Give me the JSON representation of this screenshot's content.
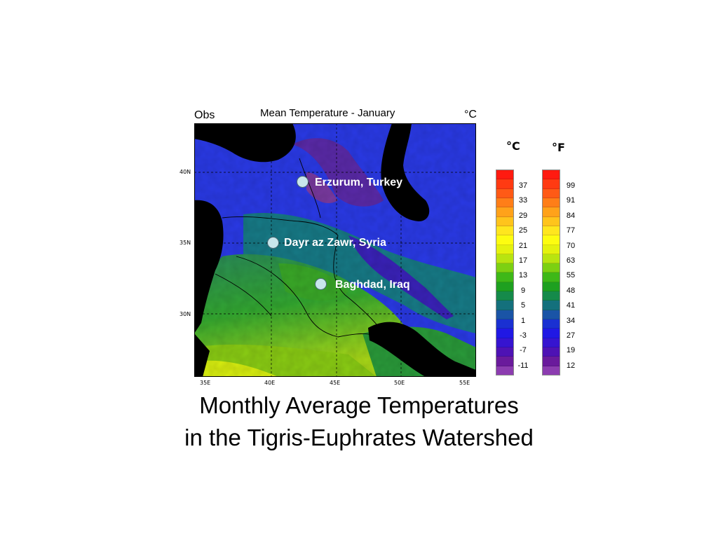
{
  "map": {
    "corner_left": "Obs",
    "title": "Mean Temperature - January",
    "corner_right": "°C",
    "lat_labels": [
      "40N",
      "35N",
      "30N"
    ],
    "lon_labels": [
      "35E",
      "40E",
      "45E",
      "50E",
      "55E"
    ],
    "cities": [
      {
        "name": "Erzurum, Turkey"
      },
      {
        "name": "Dayr az Zawr, Syria"
      },
      {
        "name": "Baghdad, Iraq"
      }
    ]
  },
  "legend": {
    "celsius_unit": "°C",
    "fahrenheit_unit": "°F",
    "celsius_values": [
      "37",
      "33",
      "29",
      "25",
      "21",
      "17",
      "13",
      "9",
      "5",
      "1",
      "-3",
      "-7",
      "-11"
    ],
    "fahrenheit_values": [
      "99",
      "91",
      "84",
      "77",
      "70",
      "63",
      "55",
      "48",
      "41",
      "34",
      "27",
      "19",
      "12"
    ],
    "colors": [
      "#ff1a10",
      "#ff3a12",
      "#ff5a16",
      "#ff7e18",
      "#ffa21a",
      "#ffc41c",
      "#ffe61e",
      "#fdfd10",
      "#e4f20e",
      "#b8e410",
      "#7cd012",
      "#3eb818",
      "#1ea020",
      "#158a4a",
      "#14707c",
      "#1a54a6",
      "#1a30d2",
      "#2018e4",
      "#3614d0",
      "#4e12b4",
      "#6a1a9c",
      "#8c3cb0"
    ]
  },
  "caption": {
    "line1": "Monthly Average Temperatures",
    "line2": "in the Tigris-Euphrates Watershed"
  }
}
